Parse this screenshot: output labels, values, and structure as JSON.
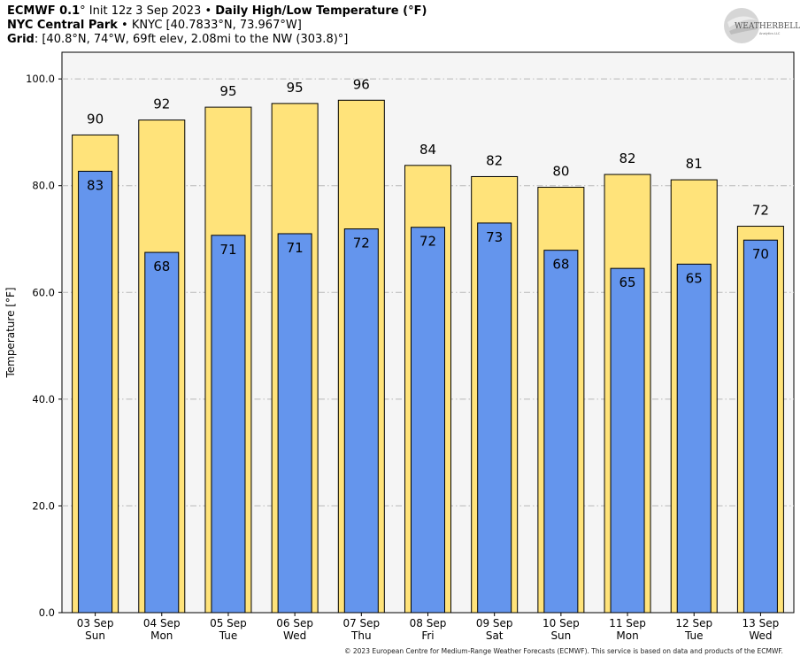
{
  "header": {
    "line1": {
      "model": "ECMWF 0.1",
      "degree": "°",
      "init": " Init 12z 3 Sep 2023",
      "sep": " • ",
      "product": "Daily High/Low Temperature (°F)"
    },
    "line2": {
      "station": "NYC Central Park",
      "sep": " • ",
      "details": "KNYC [40.7833°N, 73.967°W]"
    },
    "line3": {
      "label": "Grid",
      "details": ": [40.8°N, 74°W, 69ft elev, 2.08mi to the NW (303.8)°]"
    }
  },
  "logo": {
    "text": "WEATHERBELL",
    "subtext": "Analytics LLC"
  },
  "copyright": "© 2023 European Centre for Medium-Range Weather Forecasts (ECMWF). This service is based on data and products of the ECMWF.",
  "chart_data": {
    "type": "bar",
    "ylabel": "Temperature [°F]",
    "ylim": [
      0,
      105
    ],
    "yticks": [
      "0.0",
      "20.0",
      "40.0",
      "60.0",
      "80.0",
      "100.0"
    ],
    "grid": true,
    "categories": [
      {
        "date": "03 Sep",
        "day": "Sun"
      },
      {
        "date": "04 Sep",
        "day": "Mon"
      },
      {
        "date": "05 Sep",
        "day": "Tue"
      },
      {
        "date": "06 Sep",
        "day": "Wed"
      },
      {
        "date": "07 Sep",
        "day": "Thu"
      },
      {
        "date": "08 Sep",
        "day": "Fri"
      },
      {
        "date": "09 Sep",
        "day": "Sat"
      },
      {
        "date": "10 Sep",
        "day": "Sun"
      },
      {
        "date": "11 Sep",
        "day": "Mon"
      },
      {
        "date": "12 Sep",
        "day": "Tue"
      },
      {
        "date": "13 Sep",
        "day": "Wed"
      }
    ],
    "series": [
      {
        "values": [
          89.5,
          92.3,
          94.7,
          95.4,
          96.0,
          83.8,
          81.7,
          79.7,
          82.1,
          81.1,
          72.4
        ],
        "labels": [
          "90",
          "92",
          "95",
          "95",
          "96",
          "84",
          "82",
          "80",
          "82",
          "81",
          "72"
        ],
        "color": "#FFE37A"
      },
      {
        "values": [
          82.7,
          67.5,
          70.7,
          71.0,
          71.9,
          72.2,
          73.0,
          67.9,
          64.5,
          65.3,
          69.8
        ],
        "labels": [
          "83",
          "68",
          "71",
          "71",
          "72",
          "72",
          "73",
          "68",
          "65",
          "65",
          "70"
        ],
        "color": "#6495ED"
      }
    ],
    "colors": {
      "plot_bg": "#F5F5F5",
      "grid": "#B8B8B8"
    }
  }
}
